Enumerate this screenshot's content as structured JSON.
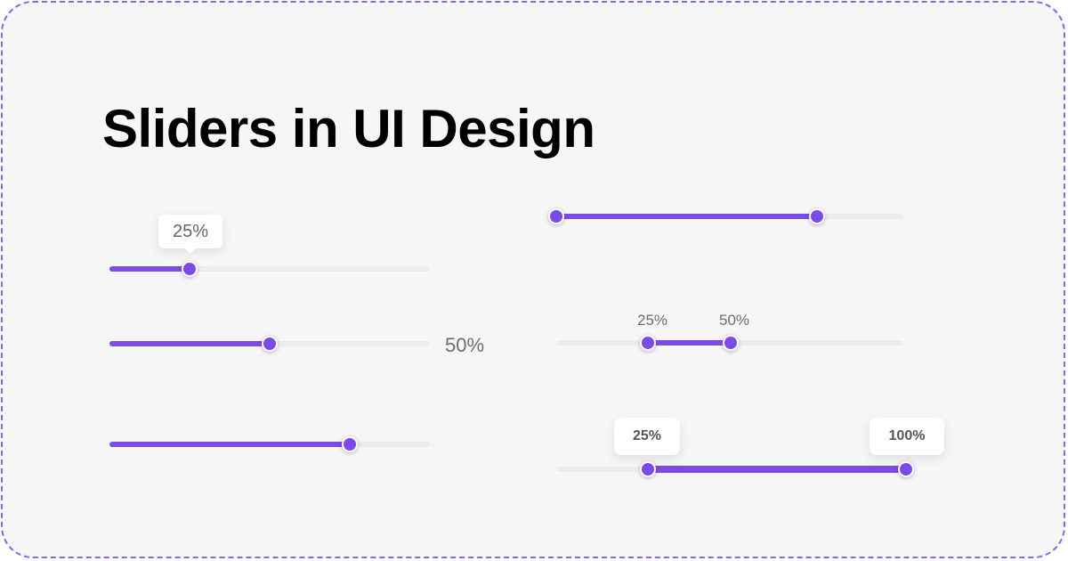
{
  "title": "Sliders in UI Design",
  "colors": {
    "accent": "#7b4ae7",
    "track": "#ececee",
    "background": "#f6f6f7",
    "frame_border": "#8a63e8"
  },
  "sliders": [
    {
      "id": "tooltip-slider",
      "value_percent": 25,
      "label": "25%"
    },
    {
      "id": "side-label-slider",
      "value_percent": 50,
      "label": "50%"
    },
    {
      "id": "plain-slider",
      "value_percent": 75
    },
    {
      "id": "range-plain",
      "range_percent": [
        0,
        75
      ]
    },
    {
      "id": "range-small-labels",
      "range_percent": [
        25,
        50
      ],
      "labels": [
        "25%",
        "50%"
      ]
    },
    {
      "id": "range-bubbles",
      "range_percent": [
        25,
        100
      ],
      "labels": [
        "25%",
        "100%"
      ]
    }
  ]
}
